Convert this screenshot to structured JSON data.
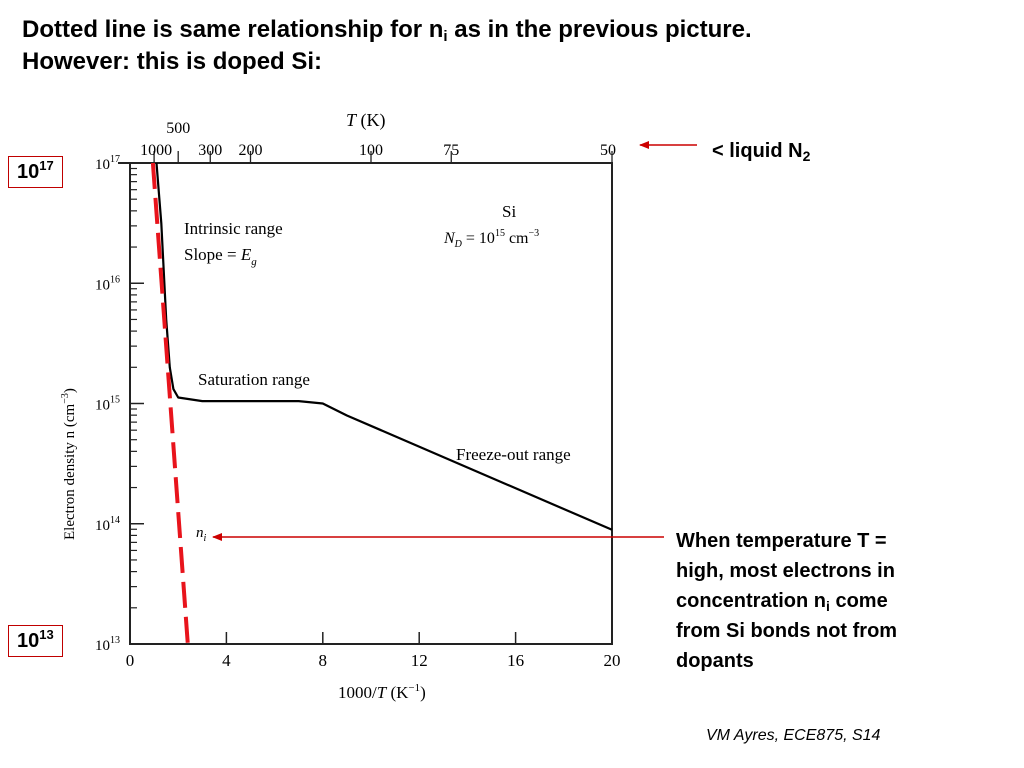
{
  "title": {
    "line1_a": "Dotted line is same relationship for n",
    "line1_sub": "i",
    "line1_b": " as in the previous picture.",
    "line2": "However: this is doped Si:"
  },
  "annotations": {
    "box_top_base": "10",
    "box_top_exp": "17",
    "box_bottom_base": "10",
    "box_bottom_exp": "13",
    "liquid_a": "< liquid N",
    "liquid_sub": "2",
    "note_line1": "When temperature T =",
    "note_line2": "high, most electrons in",
    "note_line3_a": "concentration n",
    "note_line3_sub": "i",
    "note_line3_b": " come",
    "note_line4": "from Si bonds not from",
    "note_line5": "dopants",
    "footer": "VM Ayres, ECE875, S14",
    "arrow_color": "#cc0000"
  },
  "chart_data": {
    "type": "line",
    "xlabel_a": "1000/",
    "xlabel_T": "T",
    "xlabel_b": "  (K",
    "xlabel_exp": "−1",
    "xlabel_c": ")",
    "ylabel": "Electron density n (cm",
    "ylabel_exp": "−3",
    "ylabel_close": ")",
    "top_axis_label_T": "T",
    "top_axis_label_rest": " (K)",
    "xlim": [
      0,
      20
    ],
    "ylim_log10": [
      13,
      17
    ],
    "x_ticks": [
      "0",
      "4",
      "8",
      "12",
      "16",
      "20"
    ],
    "x_tick_values": [
      0,
      4,
      8,
      12,
      16,
      20
    ],
    "y_ticks": [
      "10",
      "10",
      "10",
      "10",
      "10"
    ],
    "y_tick_exps": [
      "13",
      "14",
      "15",
      "16",
      "17"
    ],
    "y_tick_values": [
      13,
      14,
      15,
      16,
      17
    ],
    "top_ticks": [
      {
        "label": "1000",
        "x": 1.0
      },
      {
        "label": "500",
        "x": 2.0
      },
      {
        "label": "300",
        "x": 3.33
      },
      {
        "label": "200",
        "x": 5.0
      },
      {
        "label": "100",
        "x": 10.0
      },
      {
        "label": "75",
        "x": 13.33
      },
      {
        "label": "50",
        "x": 20.0
      }
    ],
    "region_labels": {
      "intrinsic_1": "Intrinsic range",
      "intrinsic_2a": "Slope = ",
      "intrinsic_2b": "E",
      "intrinsic_2sub": "g",
      "saturation": "Saturation range",
      "freezeout": "Freeze-out range",
      "si": "Si",
      "nd_a": "N",
      "nd_sub": "D",
      "nd_b": " = 10",
      "nd_exp": "15",
      "nd_c": " cm",
      "nd_exp2": "−3",
      "ni_label": "n",
      "ni_sub": "i"
    },
    "series": [
      {
        "name": "",
        "style": "solid",
        "color": "#000000",
        "points": [
          [
            1.1,
            17.0
          ],
          [
            1.3,
            16.5
          ],
          [
            1.5,
            15.7
          ],
          [
            1.65,
            15.3
          ],
          [
            1.8,
            15.12
          ],
          [
            2.0,
            15.05
          ],
          [
            3.0,
            15.02
          ],
          [
            5.0,
            15.02
          ],
          [
            7.0,
            15.02
          ],
          [
            8.0,
            15.0
          ],
          [
            9.0,
            14.9
          ],
          [
            20.0,
            13.95
          ]
        ]
      },
      {
        "name": "",
        "style": "dashed",
        "color": "#e8141c",
        "points": [
          [
            0.95,
            17.0
          ],
          [
            2.4,
            13.0
          ]
        ]
      }
    ]
  }
}
